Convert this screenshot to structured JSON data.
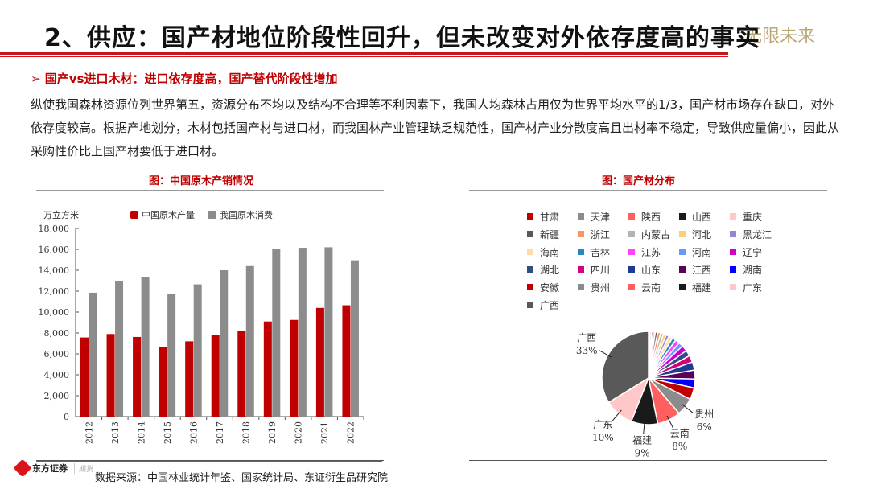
{
  "header": {
    "title": "2、供应：国产材地位阶段性回升，但未改变对外依存度高的事实",
    "slogan": "无限未来"
  },
  "subtitle": "国产vs进口木材：进口依存度高，国产替代阶段性增加",
  "paragraph": "纵使我国森林资源位列世界第五，资源分布不均以及结构不合理等不利因素下，我国人均森林占用仅为世界平均水平的1/3，国产材市场存在缺口，对外依存度较高。根据产地划分，木材包括国产材与进口材，而我国林产业管理缺乏规范性，国产材产业分散度高且出材率不稳定，导致供应量偏小，因此从采购性价比上国产材要低于进口材。",
  "footer": {
    "source": "数据来源：中国林业统计年鉴、国家统计局、东证衍生品研究院",
    "logo_text": "东方证券",
    "logo_sub": "期货"
  },
  "chart_data": [
    {
      "type": "bar",
      "title": "图：中国原木产销情况",
      "ylabel": "万立方米",
      "ylim": [
        0,
        18000
      ],
      "yticks": [
        "0",
        "2,000",
        "4,000",
        "6,000",
        "8,000",
        "10,000",
        "12,000",
        "14,000",
        "16,000",
        "18,000"
      ],
      "categories": [
        "2012",
        "2013",
        "2014",
        "2015",
        "2016",
        "2017",
        "2018",
        "2019",
        "2020",
        "2021",
        "2022"
      ],
      "legend_placement": "top",
      "series": [
        {
          "name": "中国原木产量",
          "color": "#c00000",
          "values": [
            7570,
            7900,
            7620,
            6650,
            7200,
            7780,
            8180,
            9100,
            9250,
            10400,
            10650
          ]
        },
        {
          "name": "我国原木消费",
          "color": "#8c8c8c",
          "values": [
            11850,
            12950,
            13350,
            11700,
            12650,
            14000,
            14400,
            16000,
            16150,
            16200,
            14950
          ]
        }
      ]
    },
    {
      "type": "pie",
      "title": "图：国产材分布",
      "legend_placement": "top",
      "slices": [
        {
          "name": "甘肃",
          "value": 0.3,
          "color": "#c00000"
        },
        {
          "name": "天津",
          "value": 0.2,
          "color": "#8c8c8c"
        },
        {
          "name": "陕西",
          "value": 0.5,
          "color": "#ff5f5f"
        },
        {
          "name": "山西",
          "value": 0.5,
          "color": "#1a1a1a"
        },
        {
          "name": "重庆",
          "value": 0.8,
          "color": "#ffc7c7"
        },
        {
          "name": "新疆",
          "value": 0.8,
          "color": "#595959"
        },
        {
          "name": "浙江",
          "value": 1,
          "color": "#ff935f"
        },
        {
          "name": "内蒙古",
          "value": 1,
          "color": "#b3b3b3"
        },
        {
          "name": "河北",
          "value": 1,
          "color": "#ffcc77"
        },
        {
          "name": "黑龙江",
          "value": 1,
          "color": "#9085d6"
        },
        {
          "name": "海南",
          "value": 1.3,
          "color": "#ffdca8"
        },
        {
          "name": "吉林",
          "value": 1.3,
          "color": "#2e86c1"
        },
        {
          "name": "江苏",
          "value": 1.5,
          "color": "#ff44ff"
        },
        {
          "name": "河南",
          "value": 1.5,
          "color": "#6699ff"
        },
        {
          "name": "辽宁",
          "value": 2,
          "color": "#cc00cc"
        },
        {
          "name": "湖北",
          "value": 2,
          "color": "#2f4f80"
        },
        {
          "name": "四川",
          "value": 2.3,
          "color": "#d6007a"
        },
        {
          "name": "山东",
          "value": 2.8,
          "color": "#1f3a93"
        },
        {
          "name": "江西",
          "value": 3,
          "color": "#5c005c"
        },
        {
          "name": "湖南",
          "value": 3,
          "color": "#0000ff"
        },
        {
          "name": "安徽",
          "value": 4,
          "color": "#c00000"
        },
        {
          "name": "贵州",
          "value": 6,
          "color": "#8c8c8c",
          "label": "6%"
        },
        {
          "name": "云南",
          "value": 8,
          "color": "#ff5f5f",
          "label": "8%"
        },
        {
          "name": "福建",
          "value": 9,
          "color": "#1a1a1a",
          "label": "9%"
        },
        {
          "name": "广东",
          "value": 10,
          "color": "#ffc7c7",
          "label": "10%"
        },
        {
          "name": "广西",
          "value": 33,
          "color": "#595959",
          "label": "33%"
        }
      ]
    }
  ]
}
